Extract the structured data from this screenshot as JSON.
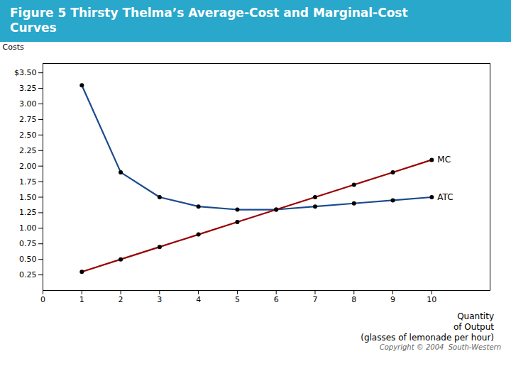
{
  "chart_data": {
    "type": "line",
    "title": "Figure 5 Thirsty Thelma’s Average-Cost and Marginal-Cost\nCurves",
    "xlabel": "Quantity\nof Output\n(glasses of lemonade per hour)",
    "ylabel": "Costs",
    "caption": "Copyright © 2004  South-Western",
    "x": [
      1,
      2,
      3,
      4,
      5,
      6,
      7,
      8,
      9,
      10
    ],
    "series": [
      {
        "name": "ATC",
        "color": "#1A4A8C",
        "marker": "circle",
        "line_style": "solid",
        "values": [
          3.3,
          1.9,
          1.5,
          1.35,
          1.3,
          1.3,
          1.35,
          1.4,
          1.45,
          1.5
        ]
      },
      {
        "name": "MC",
        "color": "#990000",
        "marker": "circle",
        "line_style": "solid",
        "values": [
          0.3,
          0.5,
          0.7,
          0.9,
          1.1,
          1.3,
          1.5,
          1.7,
          1.9,
          2.1
        ]
      }
    ],
    "xlim": [
      0,
      11.5
    ],
    "ylim": [
      0.0,
      3.65
    ],
    "xticks": [
      0,
      1,
      2,
      3,
      4,
      5,
      6,
      7,
      8,
      9,
      10
    ],
    "yticks": [
      {
        "value": 3.5,
        "label": "$3.50"
      },
      3.25,
      {
        "value": 3.0,
        "label": "3.00"
      },
      2.75,
      {
        "value": 2.5,
        "label": "2.50"
      },
      2.25,
      {
        "value": 2.0,
        "label": "2.00"
      },
      1.75,
      {
        "value": 1.5,
        "label": "1.50"
      },
      1.25,
      {
        "value": 1.0,
        "label": "1.00"
      },
      0.75,
      {
        "value": 0.5,
        "label": "0.50"
      },
      0.25
    ],
    "grid": false
  }
}
